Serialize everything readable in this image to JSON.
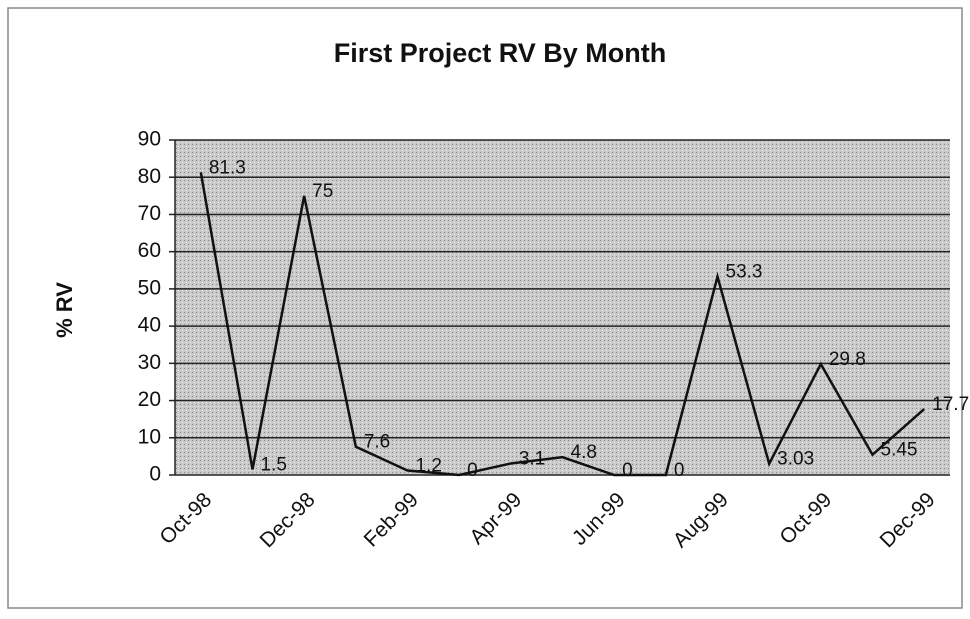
{
  "chart_data": {
    "type": "line",
    "title": "First Project RV By Month",
    "ylabel": "% RV",
    "categories": [
      "Oct-98",
      null,
      "Dec-98",
      null,
      "Feb-99",
      null,
      "Apr-99",
      null,
      "Jun-99",
      null,
      "Aug-99",
      null,
      "Oct-99",
      null,
      "Dec-99"
    ],
    "series": [
      {
        "name": "RV",
        "color": "#111111",
        "values": [
          81.3,
          1.5,
          75,
          7.6,
          1.2,
          0,
          3.1,
          4.8,
          0,
          0,
          53.3,
          3.03,
          29.8,
          5.45,
          17.7
        ]
      }
    ],
    "ylim": [
      0,
      90
    ],
    "yticks": [
      0,
      10,
      20,
      30,
      40,
      50,
      60,
      70,
      80,
      90
    ],
    "grid": true,
    "data_labels": true
  }
}
